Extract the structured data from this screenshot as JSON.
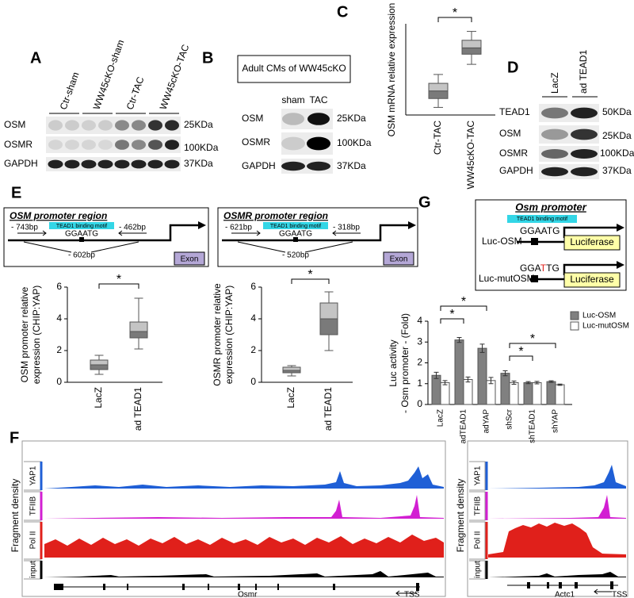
{
  "panels": {
    "A": {
      "label": "A",
      "lanes": [
        "Ctr-sham",
        "WW45cKO-sham",
        "Ctr-TAC",
        "WW45cKO-TAC"
      ],
      "rows": [
        "OSM",
        "OSMR",
        "GAPDH"
      ],
      "markers": [
        "25KDa",
        "100KDa",
        "37KDa"
      ]
    },
    "B": {
      "label": "B",
      "title": "Adult CMs of WW45cKO",
      "lanes": [
        "sham",
        "TAC"
      ],
      "rows": [
        "OSM",
        "OSMR",
        "GAPDH"
      ],
      "markers": [
        "25KDa",
        "100KDa",
        "37KDa"
      ]
    },
    "C": {
      "label": "C"
    },
    "D": {
      "label": "D",
      "lanes": [
        "LacZ",
        "ad TEAD1"
      ],
      "rows": [
        "TEAD1",
        "OSM",
        "OSMR",
        "GAPDH"
      ],
      "markers": [
        "50KDa",
        "25KDa",
        "100KDa",
        "37KDa"
      ]
    },
    "E": {
      "label": "E",
      "diagrams": [
        {
          "title": "OSM promoter region",
          "motif": "TEAD1 binding motif",
          "sequence": "GGAATG",
          "left": "- 743bp",
          "right": "- 462bp",
          "site": "- 602bp",
          "exon": "Exon"
        },
        {
          "title": "OSMR promoter region",
          "motif": "TEAD1 binding motif",
          "sequence": "GGAATG",
          "left": "- 621bp",
          "right": "- 318bp",
          "site": "- 520bp",
          "exon": "Exon"
        }
      ]
    },
    "G": {
      "label": "G",
      "diagram": {
        "title": "Osm promoter",
        "motif": "TEAD1 binding motif",
        "constructs": [
          "Luc-OSM",
          "Luc-mutOSM"
        ],
        "sequence": "GGAATG",
        "mut_sequence_parts": [
          "GGA",
          "T",
          "TG"
        ],
        "reporter": "Luciferase"
      }
    },
    "F": {
      "label": "F",
      "y_label": "Fragment density",
      "tracks": [
        "YAP1",
        "TFIIB",
        "Pol II",
        "input"
      ],
      "genes": [
        "Osmr",
        "Actc1"
      ],
      "tss": "TSS"
    }
  },
  "chart_data": [
    {
      "type": "box",
      "y_label": "OSM mRNA relative expression",
      "categories": [
        "Ctr-TAC",
        "WW45cKO-TAC"
      ],
      "boxes": [
        {
          "min": 0.3,
          "q1": 0.65,
          "median": 0.95,
          "q3": 1.25,
          "max": 1.6
        },
        {
          "min": 2.0,
          "q1": 2.4,
          "median": 2.65,
          "q3": 2.95,
          "max": 3.3
        }
      ],
      "colors": [
        "#7a7a7a",
        "#c4c4c4"
      ],
      "ylim": [
        0,
        3.6
      ],
      "annotations": [
        "*"
      ]
    },
    {
      "type": "box",
      "y_label": [
        "OSM promoter relative",
        "expression (CHIP:YAP)"
      ],
      "categories": [
        "LacZ",
        "ad TEAD1"
      ],
      "boxes": [
        {
          "min": 0.5,
          "q1": 0.8,
          "median": 1.1,
          "q3": 1.4,
          "max": 1.7
        },
        {
          "min": 2.1,
          "q1": 2.8,
          "median": 3.2,
          "q3": 3.8,
          "max": 5.3
        }
      ],
      "colors": [
        "#7a7a7a",
        "#c4c4c4"
      ],
      "ylim": [
        0,
        6
      ],
      "yticks": [
        0,
        2,
        4,
        6
      ],
      "annotations": [
        "*"
      ]
    },
    {
      "type": "box",
      "y_label": [
        "OSMR promoter relative",
        "expression (CHIP:YAP)"
      ],
      "categories": [
        "LacZ",
        "ad TEAD1"
      ],
      "boxes": [
        {
          "min": 0.4,
          "q1": 0.6,
          "median": 0.75,
          "q3": 0.95,
          "max": 1.05
        },
        {
          "min": 2.0,
          "q1": 3.0,
          "median": 4.0,
          "q3": 5.0,
          "max": 5.7
        }
      ],
      "colors": [
        "#7a7a7a",
        "#c4c4c4"
      ],
      "ylim": [
        0,
        6
      ],
      "yticks": [
        0,
        2,
        4,
        6
      ],
      "annotations": [
        "*"
      ]
    },
    {
      "type": "bar",
      "y_label": [
        "Luc activity",
        "- Osm promoter - (Fold)"
      ],
      "categories": [
        "LacZ",
        "adTEAD1",
        "adYAP",
        "shScr",
        "shTEAD1",
        "shYAP"
      ],
      "series": [
        {
          "name": "Luc-OSM",
          "color": "#808080",
          "values": [
            1.4,
            3.1,
            2.7,
            1.5,
            1.05,
            1.1
          ],
          "errors": [
            0.15,
            0.12,
            0.2,
            0.12,
            0.05,
            0.04
          ]
        },
        {
          "name": "Luc-mutOSM",
          "color": "#ffffff",
          "values": [
            1.05,
            1.2,
            1.15,
            1.05,
            1.05,
            0.95
          ],
          "errors": [
            0.1,
            0.12,
            0.15,
            0.08,
            0.06,
            0.03
          ]
        }
      ],
      "ylim": [
        0,
        4
      ],
      "yticks": [
        0,
        1,
        2,
        3,
        4
      ],
      "annotations": [
        "*",
        "*",
        "*",
        "*"
      ]
    }
  ]
}
